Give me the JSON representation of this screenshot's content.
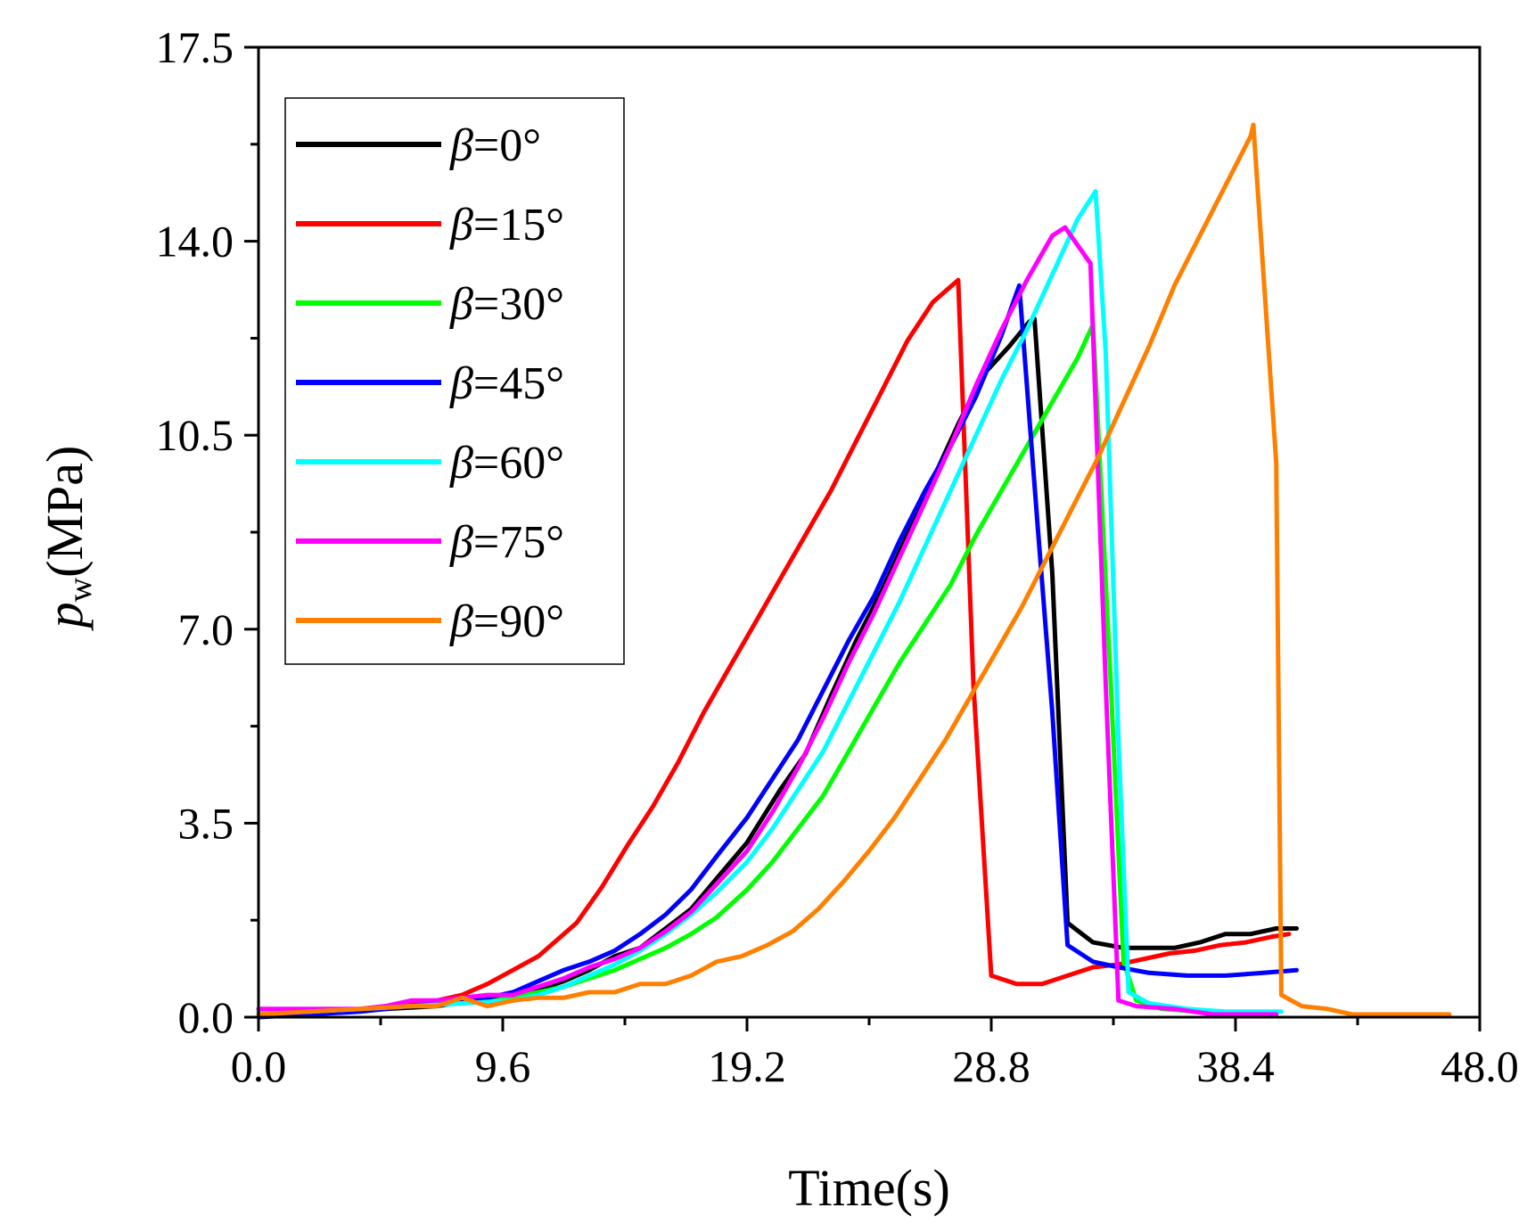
{
  "chart_data": {
    "type": "line",
    "title": "",
    "xlabel": "Time(s)",
    "ylabel_symbol": "p",
    "ylabel_subscript": "w",
    "ylabel_unit": "(MPa)",
    "xlim": [
      0,
      48
    ],
    "ylim": [
      0,
      17.5
    ],
    "x_ticks": [
      0,
      9.6,
      19.2,
      28.8,
      38.4,
      48
    ],
    "x_tick_labels": [
      "0.0",
      "9.6",
      "19.2",
      "28.8",
      "38.4",
      "48.0"
    ],
    "y_ticks": [
      0,
      3.5,
      7,
      10.5,
      14,
      17.5
    ],
    "y_tick_labels": [
      "0.0",
      "3.5",
      "7.0",
      "10.5",
      "14.0",
      "17.5"
    ],
    "grid": false,
    "legend_position": "top-left",
    "legend_symbol": "β",
    "series": [
      {
        "name": "=0°",
        "color": "#000000",
        "points": [
          [
            0,
            0.1
          ],
          [
            1,
            0.05
          ],
          [
            3,
            0.1
          ],
          [
            5,
            0.15
          ],
          [
            7,
            0.2
          ],
          [
            9,
            0.35
          ],
          [
            10,
            0.4
          ],
          [
            11,
            0.5
          ],
          [
            12,
            0.65
          ],
          [
            13,
            0.85
          ],
          [
            14,
            1.1
          ],
          [
            15,
            1.25
          ],
          [
            16,
            1.6
          ],
          [
            17,
            1.95
          ],
          [
            18,
            2.5
          ],
          [
            19.2,
            3.15
          ],
          [
            20.5,
            4.1
          ],
          [
            21.5,
            4.75
          ],
          [
            22.5,
            5.8
          ],
          [
            23.5,
            6.8
          ],
          [
            24.5,
            7.7
          ],
          [
            25.5,
            8.7
          ],
          [
            26.5,
            9.7
          ],
          [
            27.5,
            10.7
          ],
          [
            28.5,
            11.6
          ],
          [
            29.5,
            12.1
          ],
          [
            30.3,
            12.55
          ],
          [
            30.5,
            12.6
          ],
          [
            31.2,
            8.0
          ],
          [
            31.8,
            1.7
          ],
          [
            32.8,
            1.35
          ],
          [
            34,
            1.25
          ],
          [
            35,
            1.25
          ],
          [
            36,
            1.25
          ],
          [
            37,
            1.35
          ],
          [
            38,
            1.5
          ],
          [
            39,
            1.5
          ],
          [
            40,
            1.6
          ],
          [
            40.8,
            1.6
          ]
        ]
      },
      {
        "name": "=15°",
        "color": "#ff0000",
        "points": [
          [
            0,
            0.05
          ],
          [
            2,
            0.05
          ],
          [
            3,
            0.1
          ],
          [
            5,
            0.2
          ],
          [
            6.5,
            0.25
          ],
          [
            8,
            0.4
          ],
          [
            9,
            0.6
          ],
          [
            10,
            0.85
          ],
          [
            11,
            1.1
          ],
          [
            12.5,
            1.7
          ],
          [
            13.5,
            2.35
          ],
          [
            14.5,
            3.1
          ],
          [
            15.5,
            3.8
          ],
          [
            16.5,
            4.6
          ],
          [
            17.5,
            5.5
          ],
          [
            18.5,
            6.3
          ],
          [
            19.5,
            7.1
          ],
          [
            20.5,
            7.9
          ],
          [
            21.5,
            8.7
          ],
          [
            22.5,
            9.5
          ],
          [
            23.5,
            10.4
          ],
          [
            24.5,
            11.3
          ],
          [
            25.5,
            12.2
          ],
          [
            26.5,
            12.9
          ],
          [
            27,
            13.1
          ],
          [
            27.5,
            13.3
          ],
          [
            28.1,
            6.0
          ],
          [
            28.8,
            0.75
          ],
          [
            29.8,
            0.6
          ],
          [
            30.8,
            0.6
          ],
          [
            31.8,
            0.75
          ],
          [
            32.8,
            0.9
          ],
          [
            33.8,
            0.95
          ],
          [
            34.8,
            1.05
          ],
          [
            35.8,
            1.15
          ],
          [
            36.8,
            1.2
          ],
          [
            37.8,
            1.3
          ],
          [
            38.8,
            1.35
          ],
          [
            39.8,
            1.45
          ],
          [
            40.5,
            1.5
          ]
        ]
      },
      {
        "name": "=30°",
        "color": "#00ff00",
        "points": [
          [
            0,
            0.1
          ],
          [
            2,
            0.1
          ],
          [
            4,
            0.15
          ],
          [
            6,
            0.2
          ],
          [
            8,
            0.3
          ],
          [
            10,
            0.35
          ],
          [
            11,
            0.45
          ],
          [
            12,
            0.55
          ],
          [
            13,
            0.7
          ],
          [
            14,
            0.85
          ],
          [
            15,
            1.05
          ],
          [
            16,
            1.25
          ],
          [
            17,
            1.5
          ],
          [
            18,
            1.8
          ],
          [
            19.2,
            2.3
          ],
          [
            20.2,
            2.8
          ],
          [
            21.2,
            3.4
          ],
          [
            22.2,
            4.0
          ],
          [
            23.2,
            4.8
          ],
          [
            24.2,
            5.6
          ],
          [
            25.2,
            6.4
          ],
          [
            26.2,
            7.1
          ],
          [
            27.2,
            7.8
          ],
          [
            28.2,
            8.7
          ],
          [
            29.2,
            9.5
          ],
          [
            30.2,
            10.3
          ],
          [
            31.2,
            11.1
          ],
          [
            32.2,
            11.9
          ],
          [
            32.8,
            12.5
          ],
          [
            33.5,
            6.0
          ],
          [
            34,
            1.0
          ],
          [
            34.5,
            0.3
          ],
          [
            35.5,
            0.15
          ],
          [
            37,
            0.1
          ],
          [
            39,
            0.05
          ],
          [
            40,
            0.05
          ]
        ]
      },
      {
        "name": "=45°",
        "color": "#0000ff",
        "points": [
          [
            0,
            0.0
          ],
          [
            2,
            0.05
          ],
          [
            4,
            0.1
          ],
          [
            6,
            0.2
          ],
          [
            8,
            0.3
          ],
          [
            9,
            0.35
          ],
          [
            10,
            0.45
          ],
          [
            11,
            0.65
          ],
          [
            12,
            0.85
          ],
          [
            13,
            1.0
          ],
          [
            14,
            1.2
          ],
          [
            15,
            1.5
          ],
          [
            16,
            1.85
          ],
          [
            17,
            2.3
          ],
          [
            18,
            2.9
          ],
          [
            19.2,
            3.6
          ],
          [
            20.2,
            4.3
          ],
          [
            21.2,
            5.0
          ],
          [
            22.2,
            5.9
          ],
          [
            23.2,
            6.8
          ],
          [
            24.2,
            7.6
          ],
          [
            25.2,
            8.6
          ],
          [
            26.2,
            9.5
          ],
          [
            27.2,
            10.3
          ],
          [
            28.2,
            11.2
          ],
          [
            29.2,
            12.3
          ],
          [
            29.9,
            13.2
          ],
          [
            30.6,
            9.0
          ],
          [
            31.2,
            5.5
          ],
          [
            31.8,
            1.3
          ],
          [
            32.8,
            1.0
          ],
          [
            33.8,
            0.9
          ],
          [
            35,
            0.8
          ],
          [
            36.5,
            0.75
          ],
          [
            38,
            0.75
          ],
          [
            39.5,
            0.8
          ],
          [
            40.8,
            0.85
          ]
        ]
      },
      {
        "name": "=60°",
        "color": "#00ffff",
        "points": [
          [
            0,
            0.1
          ],
          [
            2,
            0.1
          ],
          [
            4,
            0.15
          ],
          [
            6,
            0.2
          ],
          [
            8,
            0.25
          ],
          [
            10,
            0.3
          ],
          [
            11,
            0.4
          ],
          [
            12,
            0.55
          ],
          [
            13,
            0.75
          ],
          [
            14,
            0.95
          ],
          [
            15,
            1.2
          ],
          [
            16,
            1.5
          ],
          [
            17,
            1.85
          ],
          [
            18,
            2.25
          ],
          [
            19.2,
            2.8
          ],
          [
            20.2,
            3.4
          ],
          [
            21.2,
            4.1
          ],
          [
            22.2,
            4.8
          ],
          [
            23.2,
            5.7
          ],
          [
            24.2,
            6.6
          ],
          [
            25.2,
            7.5
          ],
          [
            26.2,
            8.5
          ],
          [
            27.2,
            9.5
          ],
          [
            28.2,
            10.5
          ],
          [
            29.2,
            11.5
          ],
          [
            30.2,
            12.4
          ],
          [
            31.2,
            13.4
          ],
          [
            32.2,
            14.4
          ],
          [
            32.9,
            14.9
          ],
          [
            33.3,
            12.0
          ],
          [
            33.8,
            5.0
          ],
          [
            34.2,
            0.45
          ],
          [
            35,
            0.25
          ],
          [
            36.5,
            0.15
          ],
          [
            38,
            0.1
          ],
          [
            39.5,
            0.1
          ],
          [
            40.2,
            0.1
          ]
        ]
      },
      {
        "name": "=75°",
        "color": "#ff00ff",
        "points": [
          [
            0,
            0.15
          ],
          [
            2,
            0.15
          ],
          [
            4,
            0.15
          ],
          [
            5,
            0.2
          ],
          [
            6,
            0.3
          ],
          [
            7,
            0.3
          ],
          [
            8,
            0.35
          ],
          [
            9,
            0.4
          ],
          [
            10,
            0.4
          ],
          [
            11,
            0.55
          ],
          [
            12,
            0.7
          ],
          [
            13,
            0.9
          ],
          [
            14,
            1.05
          ],
          [
            15,
            1.25
          ],
          [
            16,
            1.55
          ],
          [
            17,
            1.9
          ],
          [
            18,
            2.4
          ],
          [
            19.2,
            3.0
          ],
          [
            20.2,
            3.7
          ],
          [
            21.2,
            4.5
          ],
          [
            22.2,
            5.4
          ],
          [
            23.2,
            6.4
          ],
          [
            24.2,
            7.3
          ],
          [
            25.2,
            8.3
          ],
          [
            26.2,
            9.3
          ],
          [
            27.2,
            10.3
          ],
          [
            28.2,
            11.4
          ],
          [
            29.2,
            12.4
          ],
          [
            30.2,
            13.3
          ],
          [
            31.2,
            14.1
          ],
          [
            31.7,
            14.25
          ],
          [
            32.7,
            13.6
          ],
          [
            33.3,
            6.0
          ],
          [
            33.8,
            0.3
          ],
          [
            34.5,
            0.2
          ],
          [
            36,
            0.15
          ],
          [
            37.5,
            0.05
          ],
          [
            39,
            0.05
          ],
          [
            40,
            0.05
          ]
        ]
      },
      {
        "name": "=90°",
        "color": "#ff8000",
        "points": [
          [
            0,
            0.05
          ],
          [
            2,
            0.1
          ],
          [
            4,
            0.15
          ],
          [
            6,
            0.2
          ],
          [
            7,
            0.2
          ],
          [
            8,
            0.35
          ],
          [
            9,
            0.2
          ],
          [
            10,
            0.3
          ],
          [
            11,
            0.35
          ],
          [
            12,
            0.35
          ],
          [
            13,
            0.45
          ],
          [
            14,
            0.45
          ],
          [
            15,
            0.6
          ],
          [
            16,
            0.6
          ],
          [
            17,
            0.75
          ],
          [
            18,
            1.0
          ],
          [
            19,
            1.1
          ],
          [
            20,
            1.3
          ],
          [
            21,
            1.55
          ],
          [
            22,
            1.95
          ],
          [
            23,
            2.45
          ],
          [
            24,
            3.0
          ],
          [
            25,
            3.6
          ],
          [
            26,
            4.3
          ],
          [
            27,
            5.0
          ],
          [
            28,
            5.8
          ],
          [
            29,
            6.6
          ],
          [
            30,
            7.4
          ],
          [
            31,
            8.3
          ],
          [
            32,
            9.2
          ],
          [
            33,
            10.1
          ],
          [
            34,
            11.1
          ],
          [
            35,
            12.1
          ],
          [
            36,
            13.2
          ],
          [
            37,
            14.1
          ],
          [
            38,
            15.0
          ],
          [
            39,
            15.9
          ],
          [
            39.1,
            16.1
          ],
          [
            40,
            10.0
          ],
          [
            40.2,
            0.4
          ],
          [
            41,
            0.2
          ],
          [
            42,
            0.15
          ],
          [
            43,
            0.05
          ],
          [
            45,
            0.05
          ],
          [
            46.8,
            0.05
          ]
        ]
      }
    ]
  }
}
